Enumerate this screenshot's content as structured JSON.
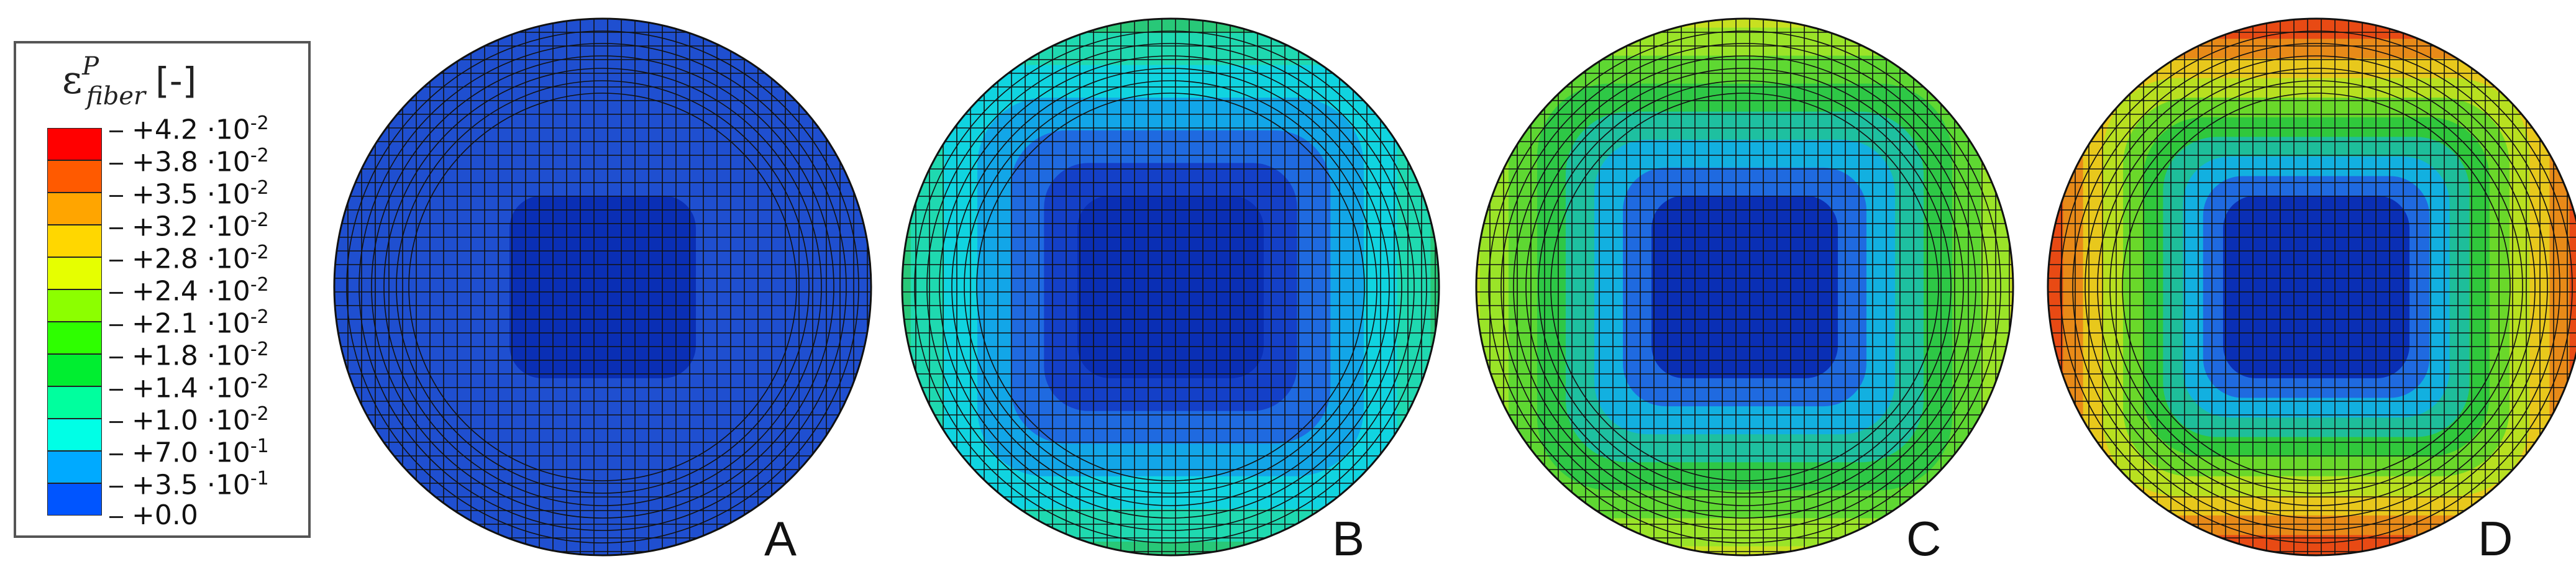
{
  "legend": {
    "symbol": "ε",
    "superscript": "P",
    "subscript": "fiber",
    "unit": "[-]",
    "levels": [
      {
        "mantissa": "+4.2",
        "exp": "-2",
        "color": "#ff0000"
      },
      {
        "mantissa": "+3.8",
        "exp": "-2",
        "color": "#ff5a00"
      },
      {
        "mantissa": "+3.5",
        "exp": "-2",
        "color": "#ffa500"
      },
      {
        "mantissa": "+3.2",
        "exp": "-2",
        "color": "#ffd700"
      },
      {
        "mantissa": "+2.8",
        "exp": "-2",
        "color": "#e6ff00"
      },
      {
        "mantissa": "+2.4",
        "exp": "-2",
        "color": "#8cff00"
      },
      {
        "mantissa": "+2.1",
        "exp": "-2",
        "color": "#2eff00"
      },
      {
        "mantissa": "+1.8",
        "exp": "-2",
        "color": "#00ee30"
      },
      {
        "mantissa": "+1.4",
        "exp": "-2",
        "color": "#00ff9e"
      },
      {
        "mantissa": "+1.0",
        "exp": "-2",
        "color": "#00ffe6"
      },
      {
        "mantissa": "+7.0",
        "exp": "-1",
        "color": "#00aaff"
      },
      {
        "mantissa": "+3.5",
        "exp": "-1",
        "color": "#0055ff"
      },
      {
        "mantissa": "+0.0",
        "exp": "",
        "color": "#0000ee"
      }
    ]
  },
  "panels": [
    {
      "letter": "A",
      "ring_colors": [
        "#1f4fd0",
        "#1f4fd0",
        "#0a2fb5"
      ]
    },
    {
      "letter": "B",
      "ring_colors": [
        "#28c878",
        "#1fd9b0",
        "#10d4e0",
        "#12a6e8",
        "#1f6ae0",
        "#1440c8",
        "#0a2fb5"
      ]
    },
    {
      "letter": "C",
      "ring_colors": [
        "#c8e020",
        "#9ae428",
        "#5ed832",
        "#2ec846",
        "#1ec0a0",
        "#12b0e0",
        "#1f6ae0",
        "#0a2fb5"
      ]
    },
    {
      "letter": "D",
      "ring_colors": [
        "#e81212",
        "#e84a14",
        "#e88a18",
        "#e8c81c",
        "#b8e020",
        "#6ad82a",
        "#30c83c",
        "#1ebe9a",
        "#12b0e0",
        "#1f6ae0",
        "#0a2fb5"
      ]
    }
  ]
}
